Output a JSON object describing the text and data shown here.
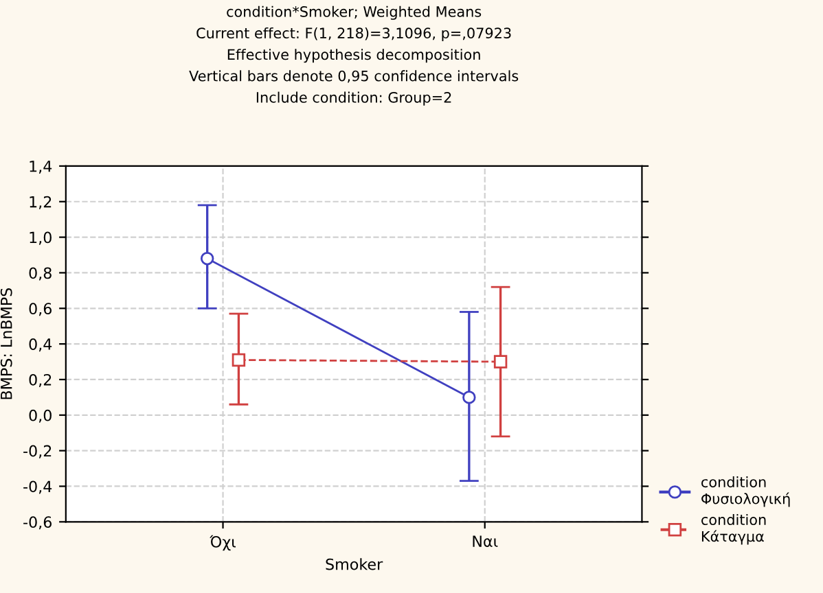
{
  "chart_data": {
    "type": "line",
    "title": "condition*Smoker; Weighted Means\nCurrent effect: F(1, 218)=3,1096, p=,07923\nEffective hypothesis decomposition\nVertical bars denote 0,95 confidence intervals\nInclude condition: Group=2",
    "xlabel": "Smoker",
    "ylabel": "BMPS: LnBMPS",
    "categories": [
      "Όχι",
      "Ναι"
    ],
    "series": [
      {
        "name": "condition\nΦυσιολογική",
        "color": "#4040c0",
        "values": [
          0.88,
          0.1
        ],
        "errors": [
          [
            0.6,
            1.18
          ],
          [
            -0.37,
            0.58
          ]
        ],
        "marker": "circle",
        "line_style": "solid"
      },
      {
        "name": "condition\nΚάταγμα",
        "color": "#d04040",
        "values": [
          0.31,
          0.3
        ],
        "errors": [
          [
            0.06,
            0.57
          ],
          [
            -0.12,
            0.72
          ]
        ],
        "marker": "square",
        "line_style": "dashed"
      }
    ],
    "ylim": [
      -0.6,
      1.4
    ],
    "yticks": [
      {
        "value": -0.6,
        "label": "-0,6"
      },
      {
        "value": -0.4,
        "label": "-0,4"
      },
      {
        "value": -0.2,
        "label": "-0,2"
      },
      {
        "value": 0.0,
        "label": "0,0"
      },
      {
        "value": 0.2,
        "label": "0,2"
      },
      {
        "value": 0.4,
        "label": "0,4"
      },
      {
        "value": 0.6,
        "label": "0,6"
      },
      {
        "value": 0.8,
        "label": "0,8"
      },
      {
        "value": 1.0,
        "label": "1,0"
      },
      {
        "value": 1.2,
        "label": "1,2"
      },
      {
        "value": 1.4,
        "label": "1,4"
      }
    ],
    "grid": true,
    "legend": "bottom right"
  }
}
